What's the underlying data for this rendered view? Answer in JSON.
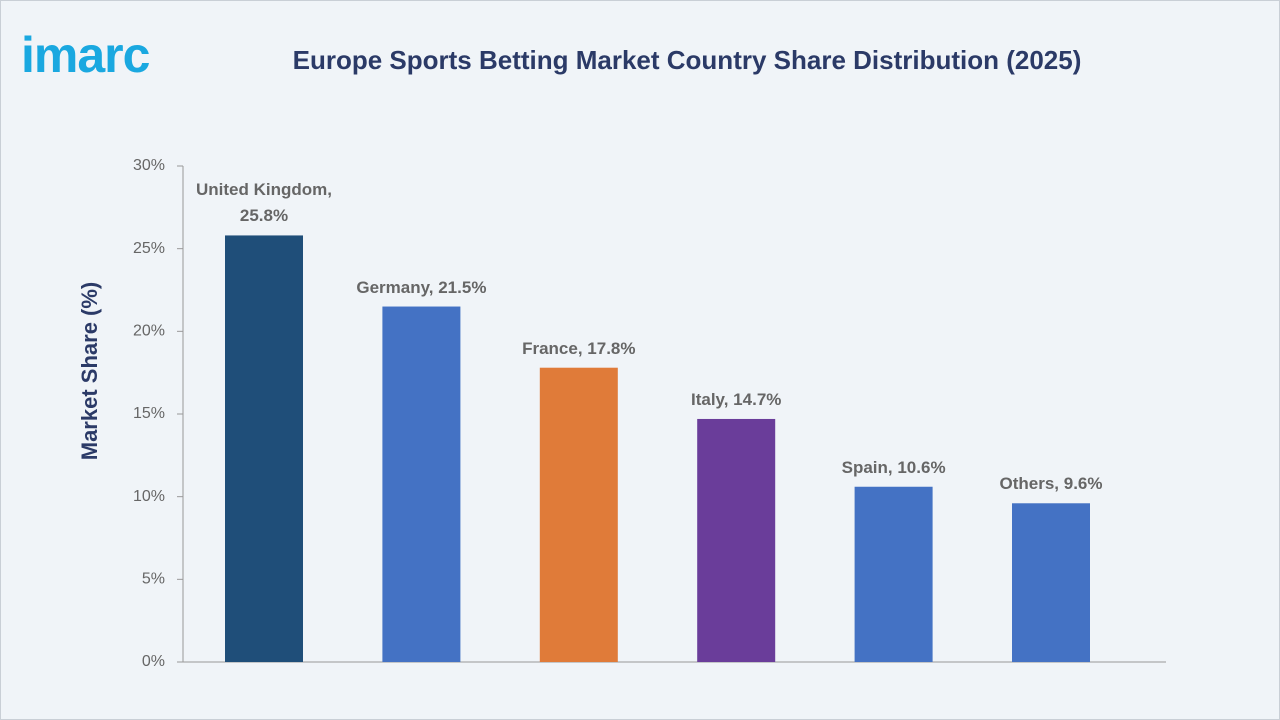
{
  "logo": "imarc",
  "chart_data": {
    "type": "bar",
    "title": "Europe Sports Betting Market Country Share Distribution (2025)",
    "y_label": "Market Share (%)",
    "categories": [
      "United Kingdom",
      "Germany",
      "France",
      "Italy",
      "Spain",
      "Others"
    ],
    "values": [
      25.8,
      21.5,
      17.8,
      14.7,
      10.6,
      9.6
    ],
    "value_labels": [
      "United Kingdom, 25.8%",
      "Germany, 21.5%",
      "France, 17.8%",
      "Italy, 14.7%",
      "Spain, 10.6%",
      "Others, 9.6%"
    ],
    "colors": [
      "#1f4e79",
      "#4472c4",
      "#e07b39",
      "#6a3d9a",
      "#4472c4",
      "#4472c4"
    ],
    "ylim": [
      0,
      30
    ],
    "yticks": [
      {
        "value": 0,
        "label": "0%"
      },
      {
        "value": 5,
        "label": "5%"
      },
      {
        "value": 10,
        "label": "10%"
      },
      {
        "value": 15,
        "label": "15%"
      },
      {
        "value": 20,
        "label": "20%"
      },
      {
        "value": 25,
        "label": "25%"
      },
      {
        "value": 30,
        "label": "30%"
      }
    ]
  }
}
